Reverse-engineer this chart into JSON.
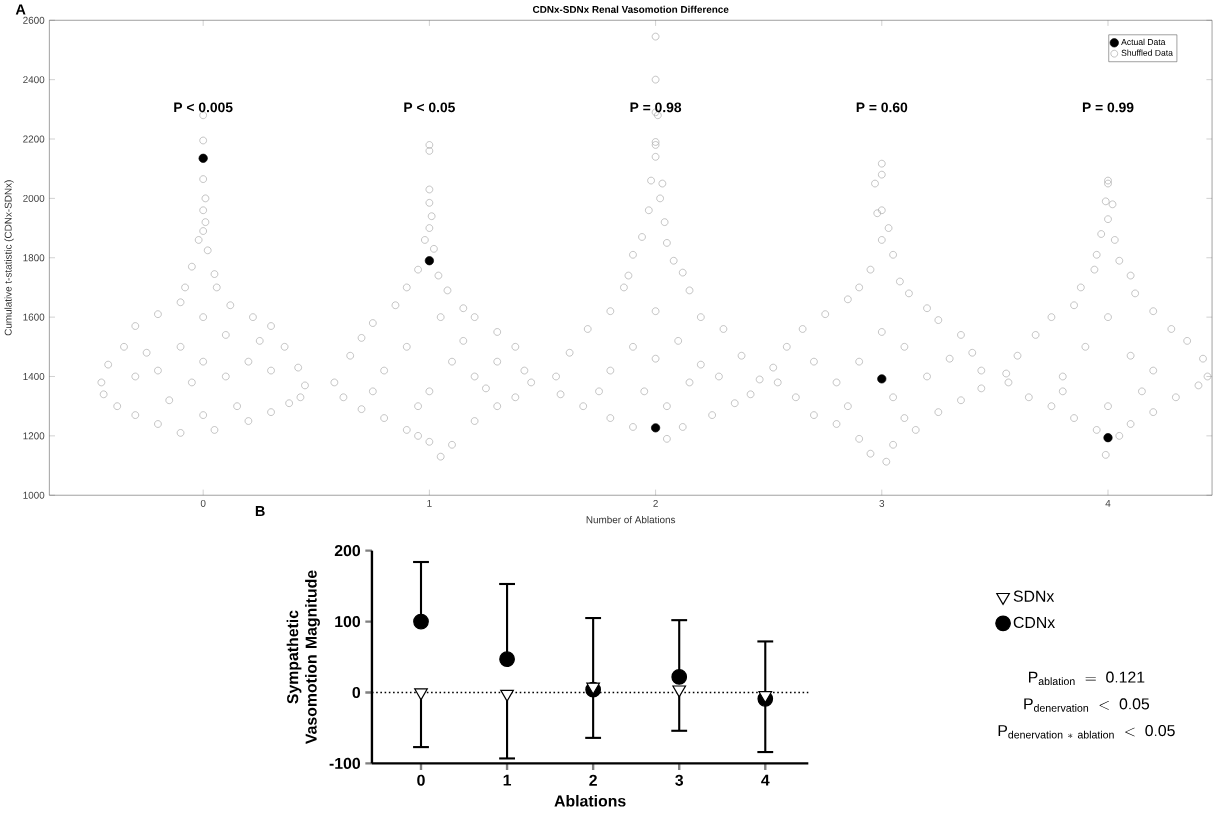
{
  "chart_data": [
    {
      "type": "scatter",
      "title": "CDNx-SDNx Renal Vasomotion Difference",
      "xlabel": "Number of Ablations",
      "ylabel": "Cumulative t-statistic (CDNx-SDNx)",
      "xlim": [
        -0.68,
        4.46
      ],
      "xticks": [
        0,
        1,
        2,
        3,
        4
      ],
      "ylim": [
        1000,
        2600
      ],
      "yticks": [
        1000,
        1200,
        1400,
        1600,
        1800,
        2000,
        2200,
        2400,
        2600
      ],
      "legend": "top right",
      "marker": "circle",
      "annotations": [
        "A",
        "P < 0.005",
        "P < 0.05",
        "P = 0.98",
        "P = 0.60",
        "P = 0.99"
      ],
      "series": [
        {
          "name": "Actual Data",
          "color": "#000000",
          "x": [
            0,
            1,
            2,
            3,
            4
          ],
          "values": [
            2135,
            1790,
            1227,
            1392,
            1194
          ]
        },
        {
          "name": "Shuffled Data",
          "color": "#a6a6a6",
          "x": [
            0,
            0,
            0,
            0.01,
            0,
            0.01,
            -0.02,
            0.02,
            0,
            -0.05,
            0.05,
            -0.08,
            0.06,
            -0.1,
            0.12,
            -0.2,
            0.22,
            -0.3,
            0.3,
            -0.35,
            0.36,
            -0.42,
            0.42,
            -0.45,
            0.45,
            -0.44,
            0.43,
            -0.38,
            0.38,
            -0.3,
            0.3,
            -0.2,
            0.2,
            -0.1,
            0.05,
            -0.2,
            0.2,
            -0.1,
            0.1,
            0,
            -0.05,
            0.1,
            -0.3,
            0.3,
            0.15,
            -0.15,
            0,
            -0.25,
            0.25,
            0,
            1,
            1,
            1,
            1,
            1.01,
            1,
            0.98,
            1.02,
            0.95,
            1.04,
            0.9,
            1.08,
            0.85,
            1.15,
            0.75,
            1.2,
            0.7,
            1.3,
            0.65,
            1.38,
            0.58,
            1.42,
            0.62,
            1.45,
            0.7,
            1.38,
            0.8,
            1.3,
            0.9,
            1.2,
            1,
            1.05,
            1.1,
            0.95,
            1.1,
            0.9,
            1.2,
            0.8,
            1,
            1.3,
            0.75,
            1.15,
            1.05,
            0.95,
            1.25,
            2,
            2,
            2,
            2.01,
            2,
            2,
            2,
            1.98,
            2.03,
            2.02,
            1.97,
            2.04,
            1.94,
            2.05,
            1.9,
            2.08,
            1.88,
            2.12,
            1.86,
            2.15,
            1.8,
            2.2,
            1.7,
            2.3,
            1.62,
            2.38,
            1.56,
            2.46,
            1.58,
            2.42,
            1.68,
            2.35,
            1.8,
            2.25,
            1.9,
            2.12,
            2.05,
            1.9,
            2.1,
            1.8,
            2.2,
            2,
            1.95,
            2.15,
            1.75,
            2.28,
            2.05,
            2,
            3,
            3,
            2.97,
            3,
            2.98,
            3.03,
            3,
            3.05,
            2.95,
            3.08,
            2.9,
            3.12,
            2.85,
            3.2,
            2.75,
            3.25,
            2.65,
            3.35,
            2.58,
            3.4,
            2.52,
            3.44,
            2.54,
            3.44,
            2.62,
            3.35,
            2.7,
            3.25,
            2.8,
            3.15,
            2.9,
            3.05,
            2.95,
            3.02,
            3.1,
            2.9,
            3.2,
            2.8,
            3,
            3.05,
            2.85,
            3.3,
            2.7,
            3.1,
            4,
            4,
            3.99,
            4.02,
            4,
            3.97,
            4.03,
            3.95,
            4.05,
            3.94,
            4.1,
            3.88,
            4.12,
            3.85,
            4.2,
            3.75,
            4.28,
            3.68,
            4.35,
            3.6,
            4.42,
            3.55,
            4.44,
            3.56,
            4.4,
            3.65,
            4.3,
            3.75,
            4.2,
            3.85,
            4.1,
            3.95,
            4.05,
            3.99,
            4.1,
            3.9,
            4.2,
            3.8,
            4,
            4.15,
            3.8,
            4
          ],
          "values": [
            2280,
            2195,
            2065,
            2000,
            1960,
            1920,
            1860,
            1825,
            1890,
            1770,
            1745,
            1700,
            1700,
            1650,
            1640,
            1610,
            1600,
            1570,
            1570,
            1500,
            1500,
            1440,
            1430,
            1380,
            1370,
            1340,
            1330,
            1300,
            1310,
            1270,
            1280,
            1240,
            1250,
            1210,
            1220,
            1420,
            1450,
            1500,
            1540,
            1600,
            1380,
            1400,
            1400,
            1420,
            1300,
            1320,
            1270,
            1480,
            1520,
            1450,
            2180,
            2160,
            2030,
            1985,
            1940,
            1900,
            1860,
            1830,
            1760,
            1740,
            1700,
            1690,
            1640,
            1630,
            1580,
            1600,
            1530,
            1550,
            1470,
            1500,
            1380,
            1420,
            1330,
            1380,
            1290,
            1330,
            1260,
            1300,
            1220,
            1250,
            1180,
            1130,
            1170,
            1200,
            1450,
            1500,
            1400,
            1420,
            1350,
            1450,
            1350,
            1520,
            1600,
            1300,
            1360,
            2545,
            2400,
            2290,
            2280,
            2190,
            2180,
            2140,
            2060,
            2050,
            2000,
            1960,
            1920,
            1870,
            1850,
            1810,
            1790,
            1740,
            1750,
            1700,
            1690,
            1620,
            1600,
            1560,
            1560,
            1480,
            1470,
            1400,
            1390,
            1340,
            1340,
            1300,
            1310,
            1260,
            1270,
            1230,
            1230,
            1190,
            1500,
            1520,
            1420,
            1440,
            1460,
            1350,
            1380,
            1350,
            1400,
            1300,
            1620,
            2117,
            2080,
            2050,
            1960,
            1950,
            1900,
            1860,
            1810,
            1760,
            1720,
            1700,
            1680,
            1660,
            1630,
            1610,
            1590,
            1560,
            1540,
            1500,
            1480,
            1430,
            1420,
            1380,
            1360,
            1330,
            1320,
            1270,
            1280,
            1240,
            1220,
            1190,
            1170,
            1140,
            1113,
            1500,
            1450,
            1400,
            1380,
            1550,
            1330,
            1300,
            1460,
            1450,
            1260,
            2060,
            2050,
            1990,
            1980,
            1930,
            1880,
            1860,
            1810,
            1790,
            1760,
            1740,
            1700,
            1680,
            1640,
            1620,
            1600,
            1560,
            1540,
            1520,
            1470,
            1460,
            1410,
            1400,
            1380,
            1370,
            1330,
            1330,
            1300,
            1280,
            1260,
            1240,
            1220,
            1200,
            1136,
            1470,
            1500,
            1420,
            1400,
            1600,
            1350,
            1350,
            1300
          ]
        }
      ]
    },
    {
      "type": "scatter",
      "xlabel": "Ablations",
      "ylabel": "Sympathetic Vasomotion Magnitude",
      "categories": [
        "0",
        "1",
        "2",
        "3",
        "4"
      ],
      "ylim": [
        -100,
        200
      ],
      "yticks": [
        -100,
        0,
        100,
        200
      ],
      "legend": "right",
      "ref_lines": [
        {
          "axis": "y",
          "value": 0,
          "line_style": "dotted"
        }
      ],
      "annotations": [
        "B",
        "\\mathrm{P_{ablation}\\ =\\ 0.121}",
        "\\mathrm{P_{denervation}\\ <\\ 0.05}",
        "\\mathrm{P_{denervation\\ *\\ ablation}\\ <\\ 0.05}"
      ],
      "series": [
        {
          "name": "SDNx",
          "color": "#000000",
          "marker": "triangle",
          "values": [
            0,
            -2,
            8,
            4,
            -4
          ],
          "errors": [
            [
              -77,
              0
            ],
            [
              -93,
              -2
            ],
            [
              -64,
              8
            ],
            [
              -54,
              4
            ],
            [
              -84,
              -4
            ]
          ]
        },
        {
          "name": "CDNx",
          "color": "#000000",
          "marker": "circle",
          "values": [
            100,
            47,
            4,
            22,
            -9
          ],
          "errors": [
            [
              100,
              184
            ],
            [
              47,
              153
            ],
            [
              4,
              105
            ],
            [
              22,
              102
            ],
            [
              -9,
              72
            ]
          ]
        }
      ]
    }
  ]
}
